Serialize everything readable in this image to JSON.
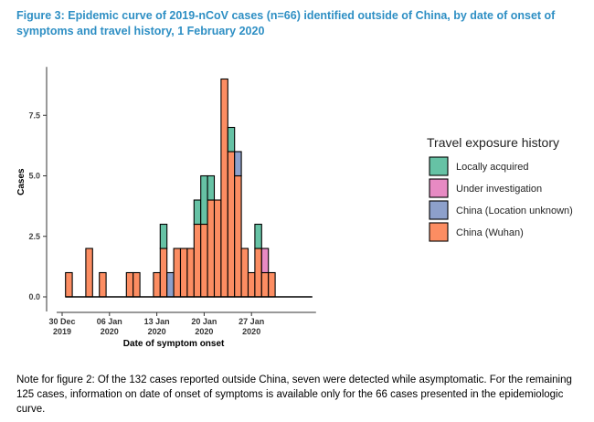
{
  "title": "Figure 3: Epidemic curve of 2019-nCoV cases (n=66) identified outside of China, by date of onset of symptoms and travel history, 1 February 2020",
  "note": "Note for figure 2: Of the 132 cases reported outside China, seven were detected while asymptomatic. For the remaining 125 cases, information on date of onset of symptoms is available only for the 66 cases presented in the epidemiologic curve.",
  "chart_data": {
    "type": "bar",
    "stacked": true,
    "title": "",
    "xlabel": "Date of symptom onset",
    "ylabel": "Cases",
    "ylim": [
      0,
      9.5
    ],
    "yticks": [
      0,
      2.5,
      5,
      7.5
    ],
    "ytick_labels": [
      "0.0",
      "2.5",
      "5.0",
      "7.5"
    ],
    "x_day_range": [
      0,
      37
    ],
    "xticks": [
      {
        "day": 0,
        "line1": "30 Dec",
        "line2": "2019"
      },
      {
        "day": 7,
        "line1": "06 Jan",
        "line2": "2020"
      },
      {
        "day": 14,
        "line1": "13 Jan",
        "line2": "2020"
      },
      {
        "day": 21,
        "line1": "20 Jan",
        "line2": "2020"
      },
      {
        "day": 28,
        "line1": "27 Jan",
        "line2": "2020"
      }
    ],
    "categories": [
      "31 Dec",
      "01 Jan",
      "02 Jan",
      "03 Jan",
      "04 Jan",
      "05 Jan",
      "06 Jan",
      "07 Jan",
      "08 Jan",
      "09 Jan",
      "10 Jan",
      "11 Jan",
      "12 Jan",
      "13 Jan",
      "14 Jan",
      "15 Jan",
      "16 Jan",
      "17 Jan",
      "18 Jan",
      "19 Jan",
      "20 Jan",
      "21 Jan",
      "22 Jan",
      "23 Jan",
      "24 Jan",
      "25 Jan",
      "26 Jan",
      "27 Jan",
      "28 Jan",
      "29 Jan",
      "30 Jan",
      "31 Jan"
    ],
    "category_days": [
      1,
      2,
      3,
      4,
      5,
      6,
      7,
      8,
      9,
      10,
      11,
      12,
      13,
      14,
      15,
      16,
      17,
      18,
      19,
      20,
      21,
      22,
      23,
      24,
      25,
      26,
      27,
      28,
      29,
      30,
      31,
      32
    ],
    "series": [
      {
        "name": "China (Wuhan)",
        "color": "#fc8d62",
        "values": [
          1,
          0,
          0,
          2,
          0,
          1,
          0,
          0,
          0,
          1,
          1,
          0,
          0,
          1,
          2,
          0,
          2,
          2,
          2,
          3,
          3,
          4,
          4,
          9,
          6,
          5,
          2,
          1,
          2,
          1,
          1,
          0
        ]
      },
      {
        "name": "China (Location unknown)",
        "color": "#8da0cb",
        "values": [
          0,
          0,
          0,
          0,
          0,
          0,
          0,
          0,
          0,
          0,
          0,
          0,
          0,
          0,
          0,
          1,
          0,
          0,
          0,
          0,
          0,
          0,
          0,
          0,
          0,
          1,
          0,
          0,
          0,
          0,
          0,
          0
        ]
      },
      {
        "name": "Under investigation",
        "color": "#e78ac3",
        "values": [
          0,
          0,
          0,
          0,
          0,
          0,
          0,
          0,
          0,
          0,
          0,
          0,
          0,
          0,
          0,
          0,
          0,
          0,
          0,
          0,
          0,
          0,
          0,
          0,
          0,
          0,
          0,
          0,
          0,
          1,
          0,
          0
        ]
      },
      {
        "name": "Locally acquired",
        "color": "#66c2a5",
        "values": [
          0,
          0,
          0,
          0,
          0,
          0,
          0,
          0,
          0,
          0,
          0,
          0,
          0,
          0,
          1,
          0,
          0,
          0,
          0,
          1,
          2,
          1,
          0,
          0,
          1,
          0,
          0,
          0,
          1,
          0,
          0,
          0
        ]
      }
    ],
    "legend": {
      "title": "Travel exposure history",
      "position": "right",
      "entries": [
        {
          "label": "Locally acquired",
          "color": "#66c2a5"
        },
        {
          "label": "Under investigation",
          "color": "#e78ac3"
        },
        {
          "label": "China (Location unknown)",
          "color": "#8da0cb"
        },
        {
          "label": "China (Wuhan)",
          "color": "#fc8d62"
        }
      ]
    }
  }
}
